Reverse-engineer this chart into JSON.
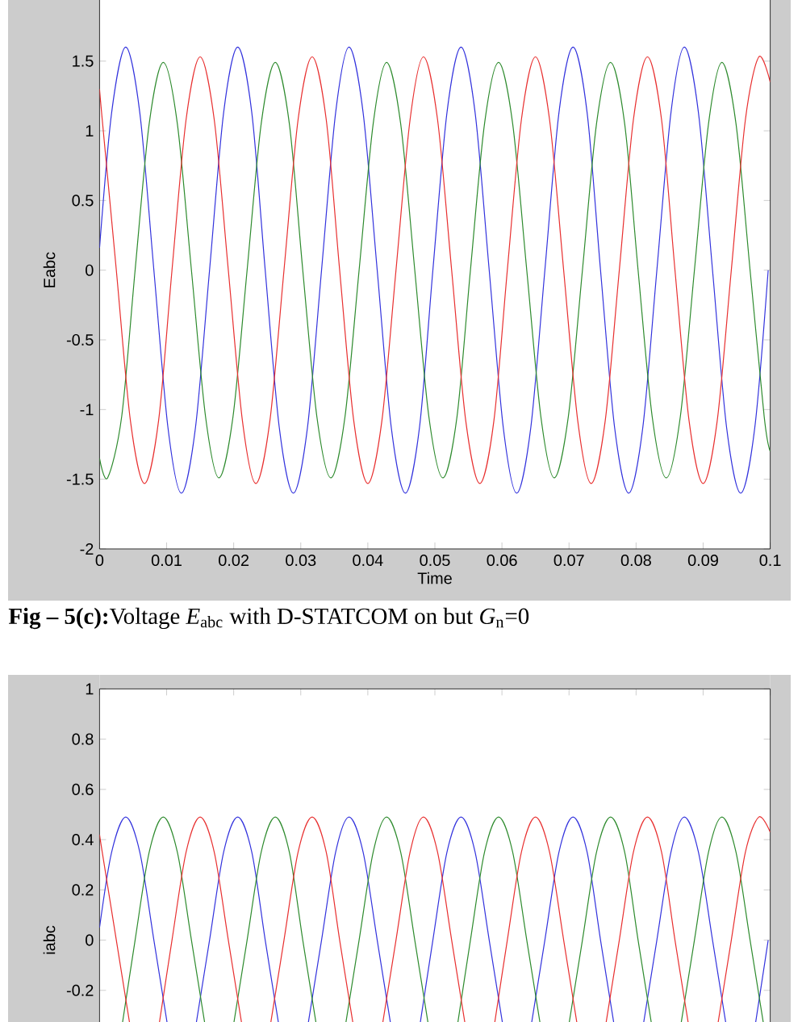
{
  "chart_data": [
    {
      "type": "line",
      "xlabel": "Time",
      "ylabel": "Eabc",
      "xlim": [
        0,
        0.1
      ],
      "ylim": [
        -2,
        2
      ],
      "xticks": [
        0,
        0.01,
        0.02,
        0.03,
        0.04,
        0.05,
        0.06,
        0.07,
        0.08,
        0.09,
        0.1
      ],
      "yticks": [
        -2,
        -1.5,
        -1,
        -0.5,
        0,
        0.5,
        1,
        1.5
      ],
      "marker": "none",
      "grid": false,
      "annotations": [
        "**Fig – 5(c):**Voltage *E*$_{abc}$ with D-STATCOM on but *G*$_{n}$=0"
      ],
      "series": [
        {
          "color": "#3333dd",
          "x": [
            0,
            0.0018,
            0.0039,
            0.006,
            0.0081,
            0.0102,
            0.0122,
            0.0143,
            0.0164,
            0.0185,
            0.0206,
            0.0227,
            0.0247,
            0.0268,
            0.0289,
            0.031,
            0.0331,
            0.0352,
            0.0372,
            0.0393,
            0.0414,
            0.0435,
            0.0456,
            0.0477,
            0.0497,
            0.0518,
            0.0539,
            0.056,
            0.0581,
            0.0602,
            0.0622,
            0.0643,
            0.0664,
            0.0685,
            0.0706,
            0.0727,
            0.0747,
            0.0768,
            0.0789,
            0.081,
            0.0831,
            0.0852,
            0.0872,
            0.0893,
            0.0914,
            0.0935,
            0.0956,
            0.0977,
            0.0997
          ],
          "values": [
            0.16,
            1.13,
            1.6,
            1.13,
            0,
            -1.13,
            -1.6,
            -1.13,
            0,
            1.13,
            1.6,
            1.13,
            0,
            -1.13,
            -1.6,
            -1.13,
            0,
            1.13,
            1.6,
            1.13,
            0,
            -1.13,
            -1.6,
            -1.13,
            0,
            1.13,
            1.6,
            1.13,
            0,
            -1.13,
            -1.6,
            -1.13,
            0,
            1.13,
            1.6,
            1.13,
            0,
            -1.13,
            -1.6,
            -1.13,
            0,
            1.13,
            1.6,
            1.13,
            0,
            -1.13,
            -1.6,
            -1.13,
            0
          ]
        },
        {
          "color": "#2e8b2e",
          "x": [
            0,
            0.0012,
            0.0033,
            0.0053,
            0.0074,
            0.0095,
            0.0116,
            0.0137,
            0.0158,
            0.0178,
            0.0199,
            0.022,
            0.0241,
            0.0262,
            0.0283,
            0.0303,
            0.0324,
            0.0345,
            0.0366,
            0.0387,
            0.0408,
            0.0428,
            0.0449,
            0.047,
            0.0491,
            0.0512,
            0.0533,
            0.0553,
            0.0574,
            0.0595,
            0.0616,
            0.0637,
            0.0658,
            0.0678,
            0.0699,
            0.072,
            0.0741,
            0.0762,
            0.0783,
            0.0803,
            0.0824,
            0.0845,
            0.0866,
            0.0887,
            0.0908,
            0.0928,
            0.0949,
            0.097,
            0.0991,
            0.1
          ],
          "values": [
            -1.35,
            -1.49,
            -1.05,
            0,
            1.05,
            1.49,
            1.05,
            0,
            -1.05,
            -1.49,
            -1.05,
            0,
            1.05,
            1.49,
            1.05,
            0,
            -1.05,
            -1.49,
            -1.05,
            0,
            1.05,
            1.49,
            1.05,
            0,
            -1.05,
            -1.49,
            -1.05,
            0,
            1.05,
            1.49,
            1.05,
            0,
            -1.05,
            -1.49,
            -1.05,
            0,
            1.05,
            1.49,
            1.05,
            0,
            -1.05,
            -1.49,
            -1.05,
            0,
            1.05,
            1.49,
            1.05,
            0,
            -1.05,
            -1.3
          ]
        },
        {
          "color": "#e83030",
          "x": [
            0,
            0.0004,
            0.0025,
            0.0046,
            0.0067,
            0.0088,
            0.0108,
            0.0129,
            0.015,
            0.0171,
            0.0192,
            0.0213,
            0.0233,
            0.0254,
            0.0275,
            0.0296,
            0.0317,
            0.0338,
            0.0358,
            0.0379,
            0.04,
            0.0421,
            0.0442,
            0.0463,
            0.0483,
            0.0504,
            0.0525,
            0.0546,
            0.0567,
            0.0588,
            0.0608,
            0.0629,
            0.065,
            0.0671,
            0.0692,
            0.0713,
            0.0733,
            0.0754,
            0.0775,
            0.0796,
            0.0817,
            0.0838,
            0.0858,
            0.0879,
            0.09,
            0.0921,
            0.0942,
            0.0963,
            0.0983,
            0.1
          ],
          "values": [
            1.3,
            1.08,
            0,
            -1.08,
            -1.53,
            -1.08,
            0,
            1.08,
            1.53,
            1.08,
            0,
            -1.08,
            -1.53,
            -1.08,
            0,
            1.08,
            1.53,
            1.08,
            0,
            -1.08,
            -1.53,
            -1.08,
            0,
            1.08,
            1.53,
            1.08,
            0,
            -1.08,
            -1.53,
            -1.08,
            0,
            1.08,
            1.53,
            1.08,
            0,
            -1.08,
            -1.53,
            -1.08,
            0,
            1.08,
            1.53,
            1.08,
            0,
            -1.08,
            -1.53,
            -1.08,
            0,
            1.08,
            1.53,
            1.35
          ]
        }
      ]
    },
    {
      "type": "line",
      "ylabel": "iabc",
      "xlim": [
        0,
        0.1
      ],
      "ylim": [
        -1,
        1
      ],
      "xticks": [
        0,
        0.01,
        0.02,
        0.03,
        0.04,
        0.05,
        0.06,
        0.07,
        0.08,
        0.09,
        0.1
      ],
      "yticks": [
        -0.2,
        0,
        0.2,
        0.4,
        0.6,
        0.8,
        1
      ],
      "tick_labels": "y",
      "marker": "none",
      "grid": false,
      "series": [
        {
          "color": "#3333dd",
          "x": [
            0,
            0.0018,
            0.0039,
            0.006,
            0.0081,
            0.0102,
            0.0122,
            0.0143,
            0.0164,
            0.0185,
            0.0206,
            0.0227,
            0.0247,
            0.0268,
            0.0289,
            0.031,
            0.0331,
            0.0352,
            0.0372,
            0.0393,
            0.0414,
            0.0435,
            0.0456,
            0.0477,
            0.0497,
            0.0518,
            0.0539,
            0.056,
            0.0581,
            0.0602,
            0.0622,
            0.0643,
            0.0664,
            0.0685,
            0.0706,
            0.0727,
            0.0747,
            0.0768,
            0.0789,
            0.081,
            0.0831,
            0.0852,
            0.0872,
            0.0893,
            0.0914,
            0.0935,
            0.0956,
            0.0977,
            0.0997
          ],
          "values": [
            0.05,
            0.35,
            0.49,
            0.35,
            0,
            -0.35,
            null,
            -0.35,
            0,
            0.35,
            0.49,
            0.35,
            0,
            -0.35,
            null,
            -0.35,
            0,
            0.35,
            0.49,
            0.35,
            0,
            -0.35,
            null,
            -0.35,
            0,
            0.35,
            0.49,
            0.35,
            0,
            -0.35,
            null,
            -0.35,
            0,
            0.35,
            0.49,
            0.35,
            0,
            -0.35,
            null,
            -0.35,
            0,
            0.35,
            0.49,
            0.35,
            0,
            -0.35,
            null,
            -0.35,
            0
          ]
        },
        {
          "color": "#2e8b2e",
          "x": [
            0.0033,
            0.0053,
            0.0074,
            0.0095,
            0.0116,
            0.0137,
            0.0158,
            0.0178,
            0.0199,
            0.022,
            0.0241,
            0.0262,
            0.0283,
            0.0303,
            0.0324,
            0.0345,
            0.0366,
            0.0387,
            0.0408,
            0.0428,
            0.0449,
            0.047,
            0.0491,
            0.0512,
            0.0533,
            0.0553,
            0.0574,
            0.0595,
            0.0616,
            0.0637,
            0.0658,
            0.0678,
            0.0699,
            0.072,
            0.0741,
            0.0762,
            0.0783,
            0.0803,
            0.0824,
            0.0845,
            0.0866,
            0.0887,
            0.0908,
            0.0928,
            0.0949,
            0.097,
            0.0991
          ],
          "values": [
            -0.35,
            0,
            0.35,
            0.49,
            0.35,
            0,
            -0.35,
            null,
            -0.35,
            0,
            0.35,
            0.49,
            0.35,
            0,
            -0.35,
            null,
            -0.35,
            0,
            0.35,
            0.49,
            0.35,
            0,
            -0.35,
            null,
            -0.35,
            0,
            0.35,
            0.49,
            0.35,
            0,
            -0.35,
            null,
            -0.35,
            0,
            0.35,
            0.49,
            0.35,
            0,
            -0.35,
            null,
            -0.35,
            0,
            0.35,
            0.49,
            0.35,
            0,
            -0.35
          ]
        },
        {
          "color": "#e83030",
          "x": [
            0,
            0.0004,
            0.0025,
            0.0046,
            0.0067,
            0.0088,
            0.0108,
            0.0129,
            0.015,
            0.0171,
            0.0192,
            0.0213,
            0.0233,
            0.0254,
            0.0275,
            0.0296,
            0.0317,
            0.0338,
            0.0358,
            0.0379,
            0.04,
            0.0421,
            0.0442,
            0.0463,
            0.0483,
            0.0504,
            0.0525,
            0.0546,
            0.0567,
            0.0588,
            0.0608,
            0.0629,
            0.065,
            0.0671,
            0.0692,
            0.0713,
            0.0733,
            0.0754,
            0.0775,
            0.0796,
            0.0817,
            0.0838,
            0.0858,
            0.0879,
            0.09,
            0.0921,
            0.0942,
            0.0963,
            0.0983,
            0.1
          ],
          "values": [
            0.42,
            0.35,
            0,
            -0.35,
            null,
            -0.35,
            0,
            0.35,
            0.49,
            0.35,
            0,
            -0.35,
            null,
            -0.35,
            0,
            0.35,
            0.49,
            0.35,
            0,
            -0.35,
            null,
            -0.35,
            0,
            0.35,
            0.49,
            0.35,
            0,
            -0.35,
            null,
            -0.35,
            0,
            0.35,
            0.49,
            0.35,
            0,
            -0.35,
            null,
            -0.35,
            0,
            0.35,
            0.49,
            0.35,
            0,
            -0.35,
            null,
            -0.35,
            0,
            0.35,
            0.49,
            0.43
          ]
        }
      ]
    }
  ]
}
